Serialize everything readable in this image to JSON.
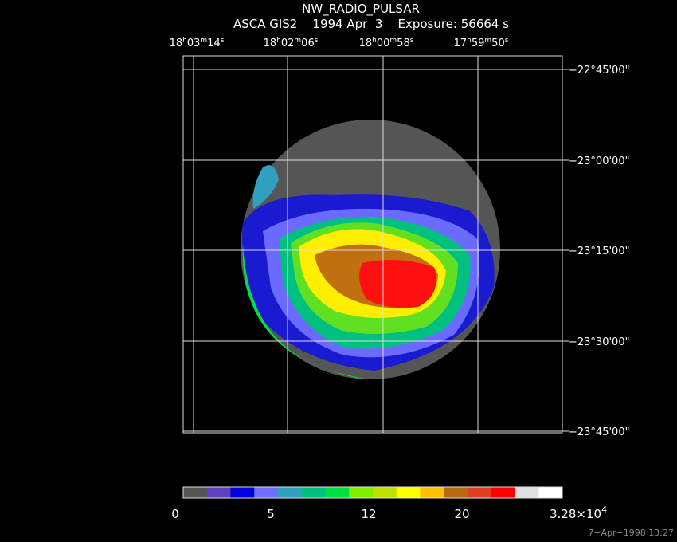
{
  "header": {
    "title": "NW_RADIO_PULSAR",
    "subtitle": "ASCA GIS2    1994 Apr  3    Exposure: 56664 s"
  },
  "ra_labels": [
    [
      "18",
      "h",
      "03",
      "m",
      "14",
      "s"
    ],
    [
      "18",
      "h",
      "02",
      "m",
      "06",
      "s"
    ],
    [
      "18",
      "h",
      "00",
      "m",
      "58",
      "s"
    ],
    [
      "17",
      "h",
      "59",
      "m",
      "50",
      "s"
    ]
  ],
  "dec_labels": [
    "−22°45'00\"",
    "−23°00'00\"",
    "−23°15'00\"",
    "−23°30'00\"",
    "−23°45'00\""
  ],
  "colorbar": {
    "labels": [
      "0",
      "5",
      "12",
      "20"
    ],
    "max_label": {
      "base": "3.28×10",
      "exp": "4"
    }
  },
  "footer": "7−Apr−1998 13:27"
}
